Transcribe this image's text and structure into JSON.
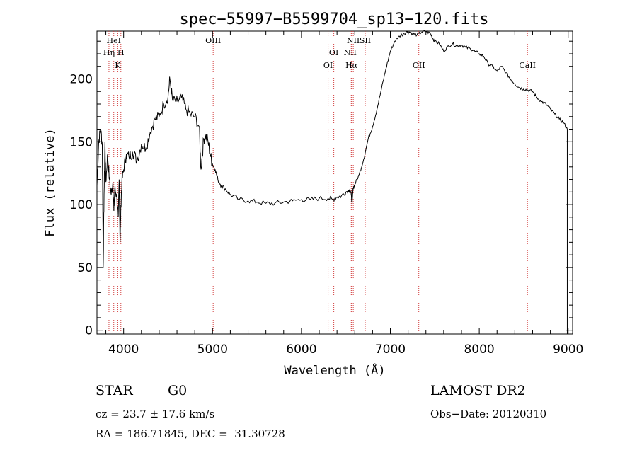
{
  "chart_data": {
    "type": "line",
    "title": "spec−55997−B5599704_sp13−120.fits",
    "xlabel": "Wavelength (Å)",
    "ylabel": "Flux (relative)",
    "xlim": [
      3700,
      9050
    ],
    "ylim": [
      -3,
      238
    ],
    "x_ticks": [
      4000,
      5000,
      6000,
      7000,
      8000,
      9000
    ],
    "y_ticks": [
      0,
      50,
      100,
      150,
      200
    ],
    "grid": false,
    "series": [
      {
        "x": [
          3700,
          3720,
          3740,
          3760,
          3770,
          3780,
          3790,
          3800,
          3820,
          3840,
          3860,
          3880,
          3890,
          3900,
          3920,
          3940,
          3950,
          3960,
          3970,
          3980,
          4000,
          4030,
          4060,
          4100,
          4150,
          4200,
          4250,
          4300,
          4350,
          4400,
          4450,
          4500,
          4520,
          4550,
          4600,
          4650,
          4700,
          4750,
          4800,
          4850,
          4870,
          4900,
          4920,
          4950,
          4980,
          5000,
          5030,
          5060,
          5100,
          5150,
          5200,
          5300,
          5400,
          5500,
          5600,
          5700,
          5800,
          5900,
          6000,
          6100,
          6200,
          6300,
          6350,
          6400,
          6450,
          6500,
          6540,
          6560,
          6570,
          6580,
          6600,
          6650,
          6700,
          6750,
          6800,
          6850,
          6900,
          6950,
          7000,
          7050,
          7100,
          7150,
          7200,
          7250,
          7300,
          7350,
          7400,
          7450,
          7480,
          7500,
          7550,
          7600,
          7650,
          7700,
          7750,
          7800,
          7850,
          7900,
          7950,
          8000,
          8050,
          8100,
          8150,
          8200,
          8250,
          8300,
          8350,
          8400,
          8450,
          8500,
          8550,
          8600,
          8650,
          8700,
          8750,
          8800,
          8850,
          8900,
          8950,
          8990
        ],
        "y": [
          115,
          150,
          160,
          148,
          50,
          108,
          150,
          118,
          140,
          120,
          108,
          118,
          95,
          112,
          108,
          90,
          120,
          70,
          100,
          118,
          128,
          140,
          138,
          142,
          135,
          148,
          145,
          158,
          168,
          170,
          180,
          186,
          200,
          183,
          182,
          185,
          176,
          172,
          170,
          162,
          128,
          152,
          155,
          150,
          138,
          132,
          128,
          120,
          115,
          112,
          108,
          104,
          103,
          102,
          101,
          101,
          102,
          103,
          104,
          104,
          105,
          105,
          104,
          106,
          107,
          110,
          112,
          108,
          100,
          113,
          116,
          124,
          136,
          152,
          162,
          176,
          192,
          208,
          222,
          230,
          234,
          236,
          238,
          236,
          235,
          237,
          238,
          236,
          232,
          230,
          228,
          222,
          226,
          228,
          226,
          227,
          225,
          224,
          222,
          220,
          218,
          212,
          210,
          206,
          210,
          205,
          200,
          196,
          193,
          192,
          191,
          190,
          185,
          182,
          180,
          176,
          172,
          168,
          165,
          160
        ],
        "color": "#000000"
      }
    ],
    "annotations": [
      {
        "label": "HeI",
        "x": 3889,
        "row": 1
      },
      {
        "label": "Hη",
        "x": 3835,
        "row": 2
      },
      {
        "label": "H",
        "x": 3969,
        "row": 2
      },
      {
        "label": "K",
        "x": 3934,
        "row": 3
      },
      {
        "label": "OIII",
        "x": 5007,
        "row": 1
      },
      {
        "label": "OI",
        "x": 6364,
        "row": 2
      },
      {
        "label": "OI",
        "x": 6300,
        "row": 3
      },
      {
        "label": "NII",
        "x": 6583,
        "row": 1
      },
      {
        "label": "SII",
        "x": 6717,
        "row": 1
      },
      {
        "label": "NII",
        "x": 6548,
        "row": 2
      },
      {
        "label": "Hα",
        "x": 6563,
        "row": 3
      },
      {
        "label": "OII",
        "x": 7320,
        "row": 3
      },
      {
        "label": "CaII",
        "x": 8542,
        "row": 3
      }
    ],
    "line_markers": [
      3835,
      3889,
      3934,
      3969,
      5007,
      6300,
      6364,
      6548,
      6563,
      6583,
      6717,
      7320,
      8542
    ]
  },
  "info": {
    "object_type": "STAR",
    "subclass": "G0",
    "survey": "LAMOST DR2",
    "redshift": "cz = 23.7 ± 17.6 km/s",
    "obs_date": "Obs−Date: 20120310",
    "coords": "RA = 186.71845, DEC =  31.30728"
  }
}
